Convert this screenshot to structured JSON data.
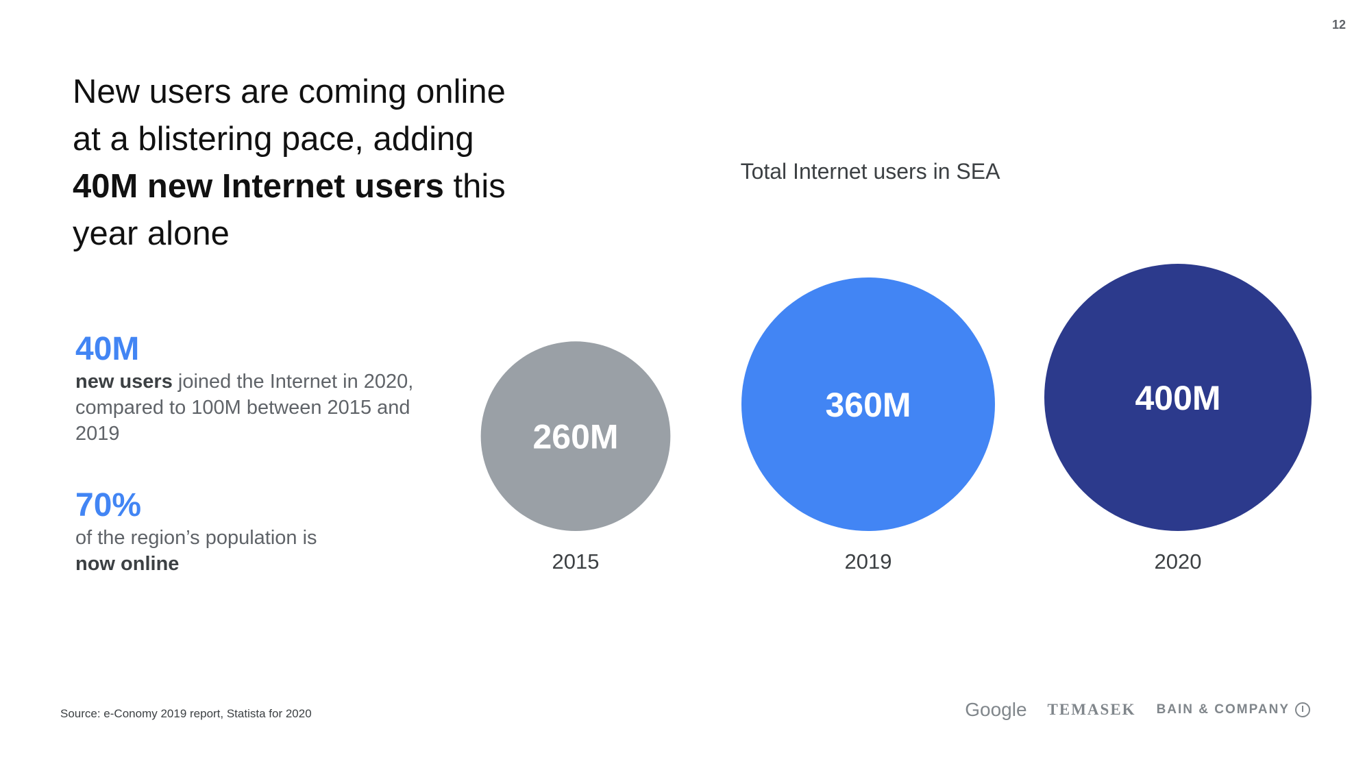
{
  "page_number": "12",
  "headline": {
    "part1": "New users are coming online at a blistering pace, adding ",
    "bold1": "40M new Internet users",
    "part2": " this year alone"
  },
  "stats": [
    {
      "value": "40M",
      "bold_lead": "new users",
      "text": " joined the Internet in 2020, compared to 100M between 2015 and 2019"
    },
    {
      "value": "70%",
      "text": "of the region’s population is ",
      "bold_tail": "now online"
    }
  ],
  "chart_data": {
    "type": "bubble",
    "title": "Total Internet users in SEA",
    "categories": [
      "2015",
      "2019",
      "2020"
    ],
    "values": [
      260,
      360,
      400
    ],
    "unit": "M",
    "data_labels": [
      "260M",
      "360M",
      "400M"
    ],
    "colors": [
      "#9aa0a6",
      "#4285f4",
      "#2c3a8c"
    ]
  },
  "source": "Source: e-Conomy 2019 report, Statista for 2020",
  "logos": {
    "google": "Google",
    "temasek": "TEMASEK",
    "bain": "BAIN & COMPANY"
  }
}
